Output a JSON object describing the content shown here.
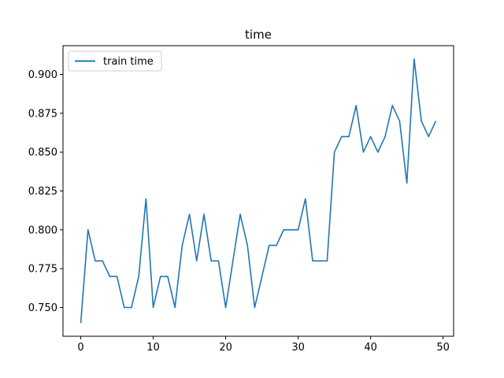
{
  "chart_data": {
    "type": "line",
    "title": "time",
    "xlabel": "",
    "ylabel": "",
    "xlim": [
      -2.45,
      51.45
    ],
    "ylim": [
      0.7315,
      0.9185
    ],
    "x_ticks": [
      0,
      10,
      20,
      30,
      40,
      50
    ],
    "x_tick_labels": [
      "0",
      "10",
      "20",
      "30",
      "40",
      "50"
    ],
    "y_ticks": [
      0.75,
      0.775,
      0.8,
      0.825,
      0.85,
      0.875,
      0.9
    ],
    "y_tick_labels": [
      "0.750",
      "0.775",
      "0.800",
      "0.825",
      "0.850",
      "0.875",
      "0.900"
    ],
    "grid": false,
    "legend_position": "upper-left",
    "series": [
      {
        "name": "train time",
        "color": "#1f77b4",
        "x": [
          0,
          1,
          2,
          3,
          4,
          5,
          6,
          7,
          8,
          9,
          10,
          11,
          12,
          13,
          14,
          15,
          16,
          17,
          18,
          19,
          20,
          21,
          22,
          23,
          24,
          25,
          26,
          27,
          28,
          29,
          30,
          31,
          32,
          33,
          34,
          35,
          36,
          37,
          38,
          39,
          40,
          41,
          42,
          43,
          44,
          45,
          46,
          47,
          48,
          49
        ],
        "values": [
          0.74,
          0.8,
          0.78,
          0.78,
          0.77,
          0.77,
          0.75,
          0.75,
          0.77,
          0.82,
          0.75,
          0.77,
          0.77,
          0.75,
          0.79,
          0.81,
          0.78,
          0.81,
          0.78,
          0.78,
          0.75,
          0.78,
          0.81,
          0.79,
          0.75,
          0.77,
          0.79,
          0.79,
          0.8,
          0.8,
          0.8,
          0.82,
          0.78,
          0.78,
          0.78,
          0.85,
          0.86,
          0.86,
          0.88,
          0.85,
          0.86,
          0.85,
          0.86,
          0.88,
          0.87,
          0.83,
          0.91,
          0.87,
          0.86,
          0.87
        ]
      }
    ]
  }
}
